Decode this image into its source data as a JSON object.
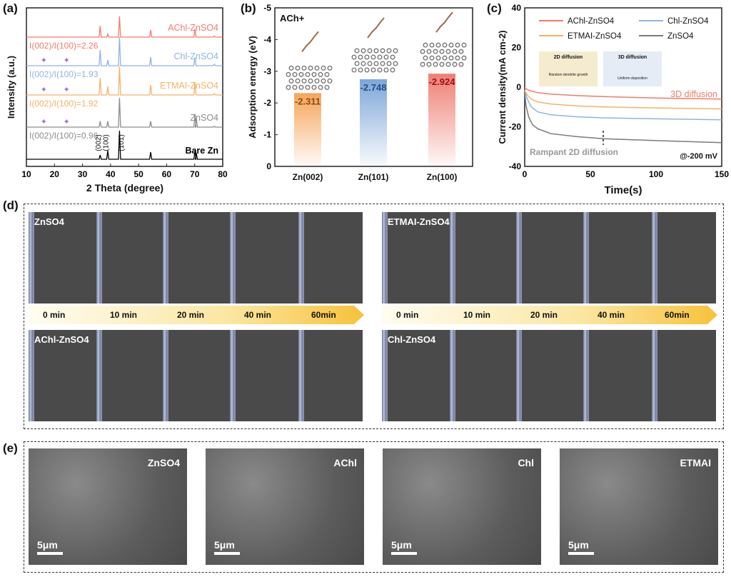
{
  "panels": {
    "a": "(a)",
    "b": "(b)",
    "c": "(c)",
    "d": "(d)",
    "e": "(e)"
  },
  "chart_data": [
    {
      "type": "line",
      "panel": "a",
      "xlabel": "2 Theta (degree)",
      "ylabel": "Intensity (a.u.)",
      "xlim": [
        10,
        80
      ],
      "xticks": [
        10,
        20,
        30,
        40,
        50,
        60,
        70,
        80
      ],
      "series": [
        {
          "name": "AChl-ZnSO4",
          "color": "#f07c6c",
          "ratio": "I(002)/I(100)=2.26",
          "peaks": [
            [
              36.3,
              0.55
            ],
            [
              39.0,
              0.15
            ],
            [
              43.2,
              1.0
            ],
            [
              54.3,
              0.35
            ],
            [
              70.1,
              0.4
            ],
            [
              77,
              0.05
            ]
          ],
          "markers": []
        },
        {
          "name": "Chl-ZnSO4",
          "color": "#8fb4e0",
          "ratio": "I(002)/I(100)=1.93",
          "peaks": [
            [
              36.3,
              0.55
            ],
            [
              39.0,
              0.2
            ],
            [
              43.2,
              1.0
            ],
            [
              54.3,
              0.3
            ],
            [
              70.1,
              0.3
            ],
            [
              77,
              0.05
            ]
          ],
          "markers": [
            16.2,
            24.3
          ]
        },
        {
          "name": "ETMAI-ZnSO4",
          "color": "#f5b266",
          "ratio": "I(002)/I(100)=1.92",
          "peaks": [
            [
              36.3,
              0.6
            ],
            [
              39.0,
              0.3
            ],
            [
              43.2,
              1.0
            ],
            [
              54.3,
              0.35
            ],
            [
              70.1,
              0.45
            ],
            [
              77,
              0.05
            ]
          ],
          "markers": [
            16.2,
            24.3
          ]
        },
        {
          "name": "ZnSO4",
          "color": "#8c8c8c",
          "ratio": "I(002)/I(100)=0.96",
          "peaks": [
            [
              36.3,
              0.2
            ],
            [
              39.0,
              0.2
            ],
            [
              43.2,
              1.0
            ],
            [
              54.3,
              0.2
            ],
            [
              70.1,
              0.45
            ],
            [
              70.6,
              0.3
            ],
            [
              77,
              0.03
            ]
          ],
          "markers": [
            16.2,
            24.3
          ]
        },
        {
          "name": "Bare Zn",
          "color": "#000000",
          "ratio": "",
          "peaks": [
            [
              36.3,
              0.15
            ],
            [
              39.0,
              0.3
            ],
            [
              43.2,
              1.0
            ],
            [
              54.3,
              0.25
            ],
            [
              70.1,
              0.3
            ],
            [
              70.6,
              0.2
            ]
          ],
          "markers": []
        }
      ],
      "annotations": [
        "(002)",
        "(100)",
        "(101)"
      ]
    },
    {
      "type": "bar",
      "panel": "b",
      "xlabel": "",
      "ylabel": "Adsorption energy (eV)",
      "ylim": [
        0,
        -5
      ],
      "yticks": [
        0,
        -1,
        -2,
        -3,
        -4,
        -5
      ],
      "inset_label": "ACh+",
      "categories": [
        "Zn(002)",
        "Zn(101)",
        "Zn(100)"
      ],
      "values": [
        -2.311,
        -2.748,
        -2.924
      ],
      "labels": [
        "-2.311",
        "-2.748",
        "-2.924"
      ],
      "colors": [
        "#f5a55a",
        "#7ea6d8",
        "#ef7f74"
      ],
      "label_colors": [
        "#8a4a10",
        "#1f4f8a",
        "#9a1010"
      ]
    },
    {
      "type": "line",
      "panel": "c",
      "xlabel": "Time(s)",
      "ylabel": "Current density(mA cm-2)",
      "xlim": [
        0,
        150
      ],
      "ylim": [
        -40,
        40
      ],
      "xticks": [
        0,
        50,
        100,
        150
      ],
      "yticks": [
        -40,
        -20,
        0,
        20,
        40
      ],
      "legend": "top",
      "series": [
        {
          "name": "AChl-ZnSO4",
          "color": "#f07c6c",
          "x": [
            0,
            2,
            5,
            10,
            20,
            40,
            60,
            100,
            150
          ],
          "y": [
            -0.5,
            -1.2,
            -2,
            -2.8,
            -3.5,
            -4.3,
            -4.8,
            -5.5,
            -6
          ]
        },
        {
          "name": "Chl-ZnSO4",
          "color": "#8fb4e0",
          "x": [
            0,
            2,
            5,
            10,
            20,
            40,
            60,
            100,
            150
          ],
          "y": [
            -2,
            -6,
            -10,
            -12.5,
            -14,
            -15,
            -15.5,
            -16,
            -16.5
          ]
        },
        {
          "name": "ETMAI-ZnSO4",
          "color": "#f5b266",
          "x": [
            0,
            2,
            5,
            10,
            20,
            40,
            60,
            100,
            150
          ],
          "y": [
            -1.5,
            -4,
            -6,
            -7.5,
            -8.5,
            -9.5,
            -10,
            -10.5,
            -11
          ]
        },
        {
          "name": "ZnSO4",
          "color": "#7a7a7a",
          "x": [
            0,
            1,
            3,
            6,
            10,
            20,
            40,
            60,
            100,
            150
          ],
          "y": [
            -3,
            -9,
            -15,
            -19,
            -21,
            -23.5,
            -25,
            -26,
            -27,
            -28
          ]
        }
      ],
      "annotations": {
        "three_d": "3D diffusion",
        "two_d": "Rampant 2D diffusion",
        "potential": "@-200 mV",
        "inset_2d": "2D diffusion",
        "inset_2d_sub": "Random dendrite growth",
        "inset_3d": "3D diffusion",
        "inset_3d_sub": "Uniform deposition"
      }
    }
  ],
  "panel_d": {
    "times": [
      "0 min",
      "10 min",
      "20 min",
      "40 min",
      "60min"
    ],
    "labels": [
      "ZnSO4",
      "ETMAI-ZnSO4",
      "AChl-ZnSO4",
      "Chl-ZnSO4"
    ]
  },
  "panel_e": {
    "labels": [
      "ZnSO4",
      "AChl",
      "Chl",
      "ETMAI"
    ],
    "scale": "5μm"
  }
}
